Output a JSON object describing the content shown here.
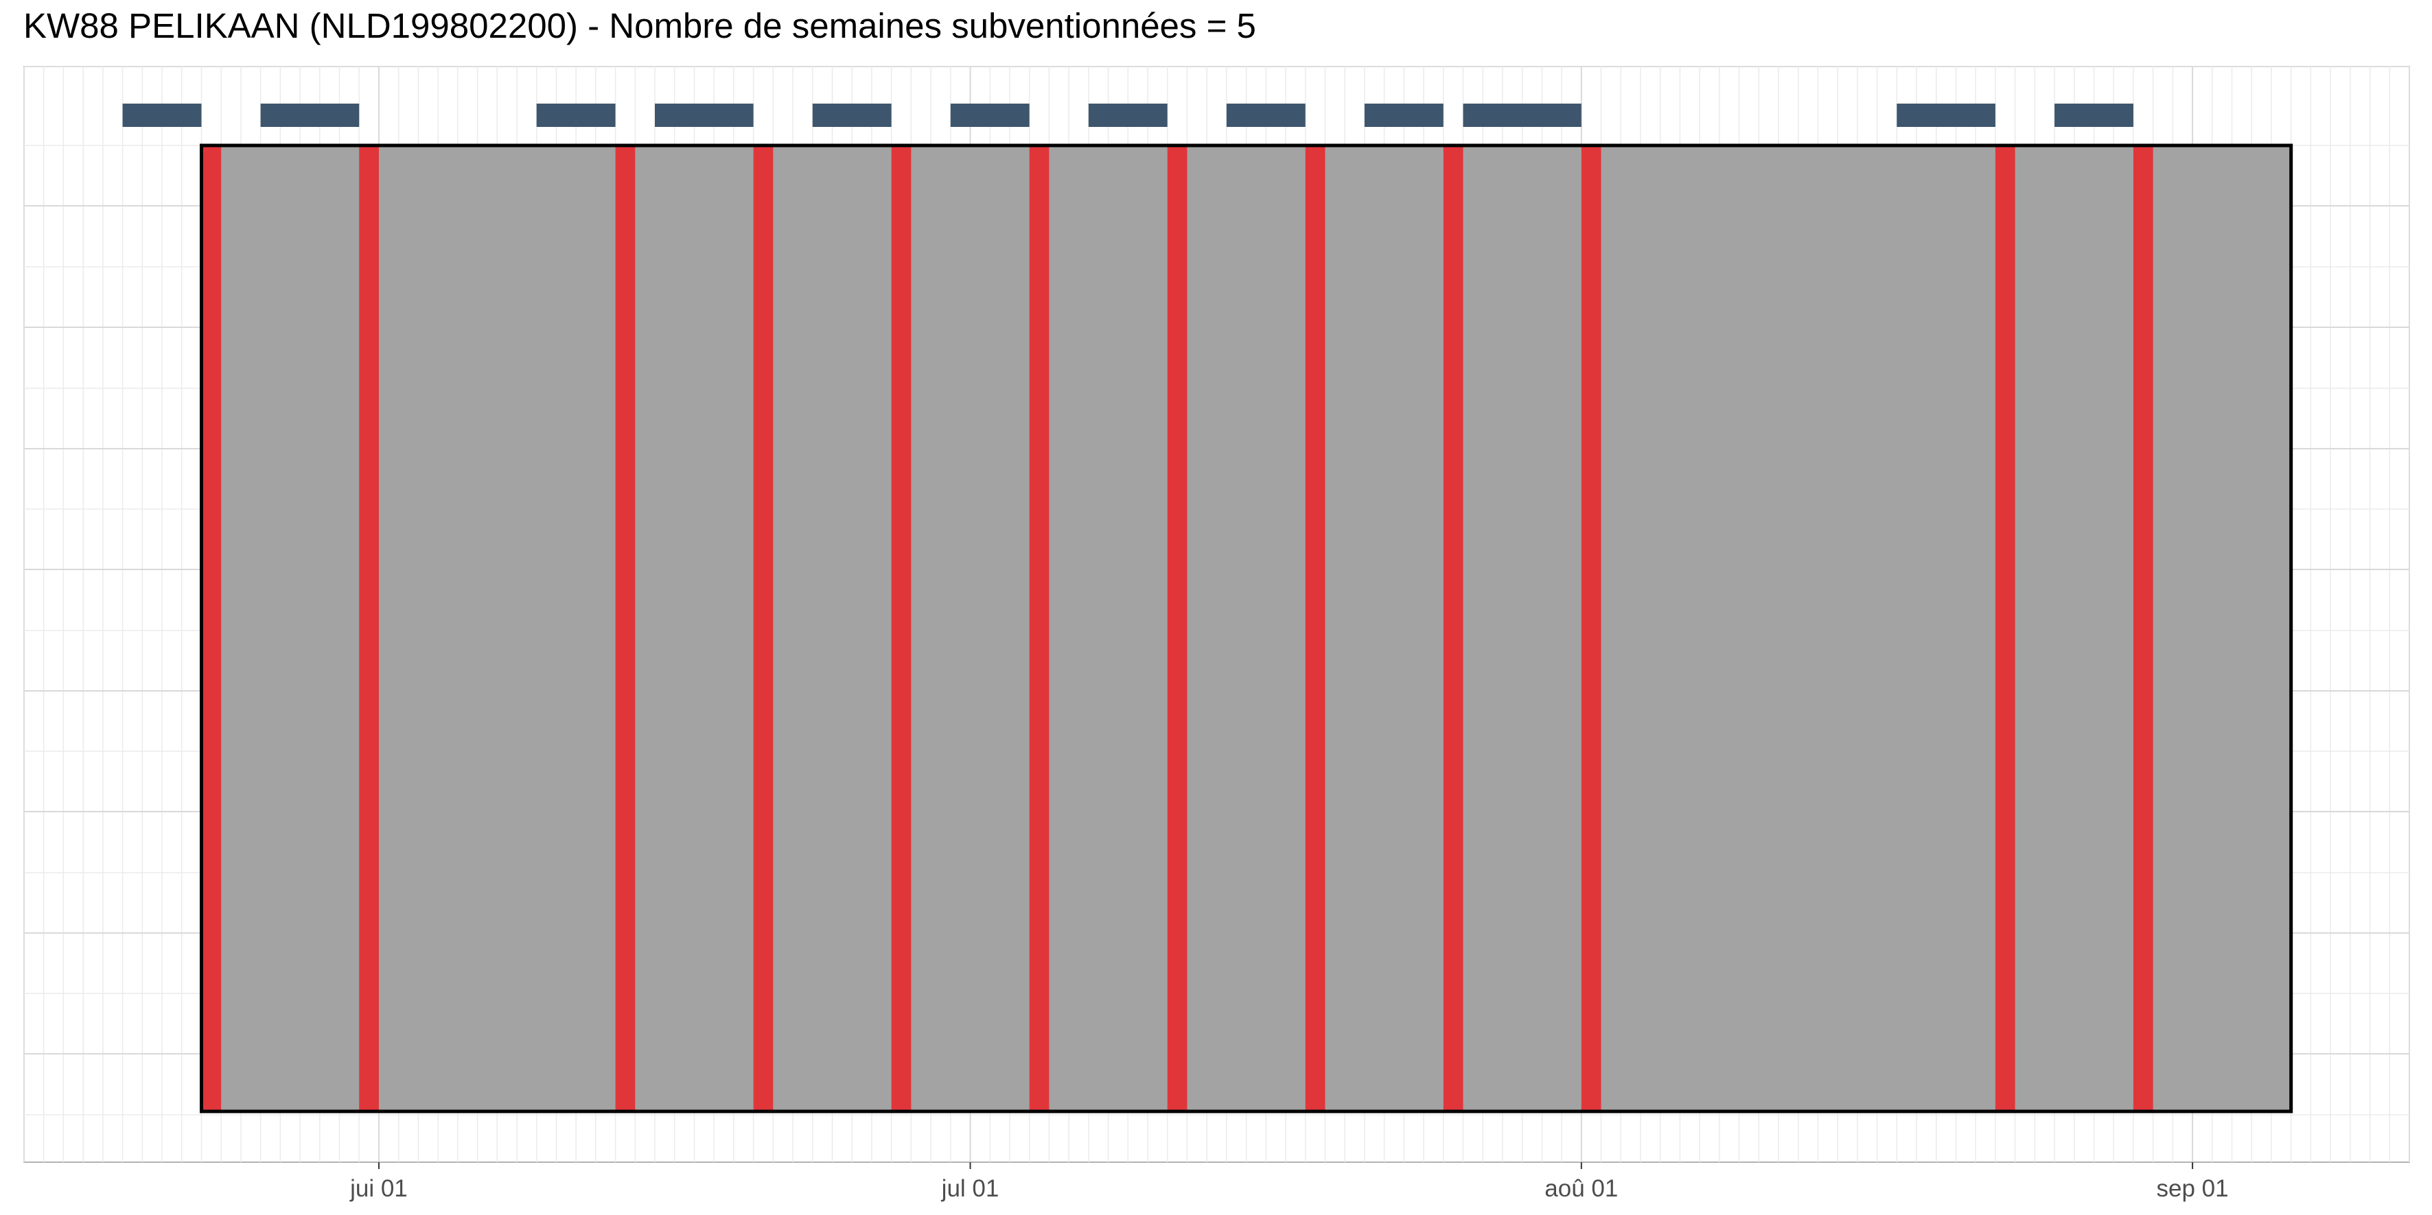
{
  "chart_data": {
    "type": "timeline",
    "title": "KW88 PELIKAAN (NLD199802200) - Nombre de semaines subventionnées = 5",
    "xlabel": "",
    "ylabel": "",
    "x_axis": {
      "type": "date",
      "range": [
        "2021-05-14",
        "2021-09-12"
      ],
      "ticks": [
        {
          "date": "2021-06-01",
          "label": "jui 01"
        },
        {
          "date": "2021-07-01",
          "label": "jul 01"
        },
        {
          "date": "2021-08-01",
          "label": "aoû 01"
        },
        {
          "date": "2021-09-01",
          "label": "sep 01"
        }
      ]
    },
    "grid": true,
    "period": {
      "start": "2021-05-23",
      "end": "2021-09-06",
      "fill": "#a3a3a3",
      "border": "#000000"
    },
    "markers": {
      "color": "#e0363a",
      "dates": [
        "2021-05-23",
        "2021-05-31",
        "2021-06-13",
        "2021-06-20",
        "2021-06-27",
        "2021-07-04",
        "2021-07-11",
        "2021-07-18",
        "2021-07-25",
        "2021-08-01",
        "2021-08-22",
        "2021-08-29"
      ]
    },
    "segments": {
      "color": "#3d566e",
      "ranges": [
        [
          "2021-05-19",
          "2021-05-23"
        ],
        [
          "2021-05-26",
          "2021-05-31"
        ],
        [
          "2021-06-09",
          "2021-06-13"
        ],
        [
          "2021-06-15",
          "2021-06-20"
        ],
        [
          "2021-06-23",
          "2021-06-27"
        ],
        [
          "2021-06-30",
          "2021-07-04"
        ],
        [
          "2021-07-07",
          "2021-07-11"
        ],
        [
          "2021-07-14",
          "2021-07-18"
        ],
        [
          "2021-07-21",
          "2021-07-25"
        ],
        [
          "2021-07-26",
          "2021-08-01"
        ],
        [
          "2021-08-17",
          "2021-08-22"
        ],
        [
          "2021-08-25",
          "2021-08-29"
        ]
      ]
    }
  }
}
